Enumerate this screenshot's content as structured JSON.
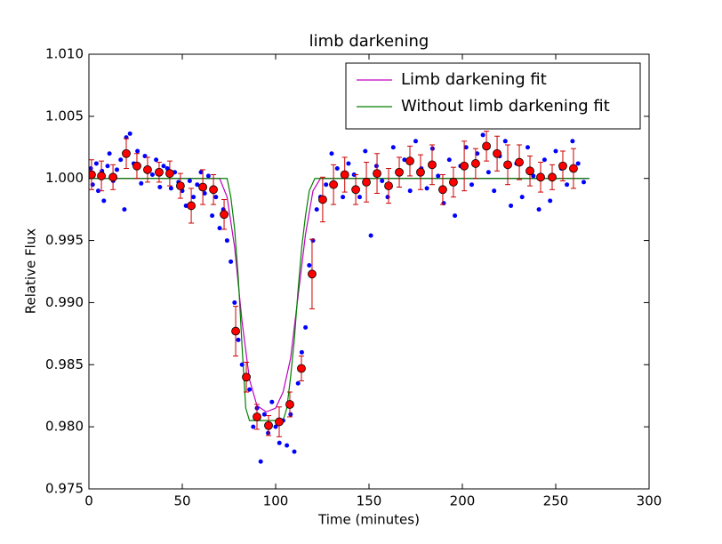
{
  "chart_data": {
    "type": "line",
    "title": "limb darkening",
    "x_label": "Time (minutes)",
    "y_label": "Relative Flux",
    "xlim": [
      0,
      300
    ],
    "ylim": [
      0.975,
      1.01
    ],
    "xticks": [
      0,
      50,
      100,
      150,
      200,
      250,
      300
    ],
    "yticks": [
      0.975,
      {
        "value": 0.98,
        "label": "0.980"
      },
      0.985,
      {
        "value": 0.99,
        "label": "0.990"
      },
      0.995,
      {
        "value": 1.0,
        "label": "1.000"
      },
      1.005,
      {
        "value": 1.01,
        "label": "1.010"
      }
    ],
    "legend": "upper right",
    "series": [
      {
        "type": "scatter",
        "color": "#0000ff",
        "x": [
          1,
          2,
          4,
          5,
          7,
          8,
          10,
          11,
          13,
          15,
          17,
          19,
          20,
          22,
          24,
          26,
          28,
          30,
          32,
          34,
          36,
          38,
          40,
          42,
          44,
          46,
          48,
          50,
          52,
          54,
          56,
          58,
          60,
          62,
          64,
          66,
          68,
          70,
          72,
          74,
          76,
          78,
          80,
          82,
          84,
          86,
          88,
          90,
          92,
          94,
          96,
          98,
          100,
          102,
          104,
          106,
          108,
          110,
          112,
          114,
          116,
          118,
          120,
          122,
          124,
          127,
          130,
          133,
          136,
          139,
          142,
          145,
          148,
          151,
          154,
          157,
          160,
          163,
          166,
          169,
          172,
          175,
          178,
          181,
          184,
          187,
          190,
          193,
          196,
          199,
          202,
          205,
          208,
          211,
          214,
          217,
          220,
          223,
          226,
          229,
          232,
          235,
          238,
          241,
          244,
          247,
          250,
          253,
          256,
          259,
          262,
          265
        ],
        "values": [
          1.0008,
          0.9995,
          1.0012,
          0.999,
          1.0006,
          0.9982,
          1.001,
          1.002,
          0.9998,
          1.0007,
          1.0015,
          0.9975,
          1.0033,
          1.0036,
          1.0012,
          1.0022,
          0.9996,
          1.0018,
          1.0008,
          1.0003,
          1.0015,
          0.9993,
          1.001,
          1.0008,
          0.9992,
          1.0005,
          0.9997,
          0.999,
          0.9978,
          0.9998,
          0.9985,
          0.9995,
          1.0005,
          0.9988,
          1.0002,
          0.997,
          0.9985,
          0.996,
          0.9975,
          0.995,
          0.9933,
          0.99,
          0.987,
          0.985,
          0.984,
          0.983,
          0.98,
          0.9815,
          0.9772,
          0.981,
          0.9795,
          0.982,
          0.98,
          0.9787,
          0.9805,
          0.9785,
          0.981,
          0.978,
          0.9835,
          0.986,
          0.988,
          0.993,
          0.995,
          0.9975,
          0.9985,
          0.9995,
          1.002,
          1.0008,
          0.9985,
          1.0012,
          1.0003,
          0.9985,
          1.0022,
          0.9954,
          1.001,
          0.9998,
          0.9985,
          1.0025,
          1.0005,
          1.0015,
          0.999,
          1.003,
          1.0008,
          0.9992,
          1.0024,
          1.0002,
          0.998,
          1.0015,
          0.997,
          1.001,
          1.0025,
          0.9995,
          1.002,
          1.0035,
          1.0005,
          0.999,
          1.0018,
          1.003,
          0.9978,
          1.0012,
          0.9985,
          1.0025,
          1.0002,
          0.9975,
          1.0015,
          0.9982,
          1.0022,
          1.0008,
          0.9995,
          1.003,
          1.0012,
          0.9997
        ]
      },
      {
        "type": "errorbar",
        "color": "#ff0000",
        "error_color": "#cc0000",
        "x": [
          1.4,
          6.7,
          12.9,
          20,
          25.7,
          31.4,
          37.6,
          43.3,
          49,
          54.8,
          61,
          66.7,
          72.4,
          78.6,
          84.3,
          90,
          96.2,
          101.9,
          107.6,
          113.8,
          119.5,
          125.2,
          131,
          137,
          142.9,
          148.6,
          154.3,
          160.5,
          166.2,
          171.9,
          177.6,
          183.8,
          189.5,
          195.2,
          201,
          207.1,
          212.9,
          218.6,
          224.3,
          230.5,
          236.2,
          241.9,
          248.1,
          253.8,
          259.5
        ],
        "values": [
          1.0003,
          1.0002,
          1.0001,
          1.002,
          1.001,
          1.0007,
          1.0005,
          1.0004,
          0.9994,
          0.9978,
          0.9993,
          0.9991,
          0.9971,
          0.9877,
          0.984,
          0.9808,
          0.9801,
          0.9804,
          0.9818,
          0.9847,
          0.9923,
          0.9983,
          0.9995,
          1.0003,
          0.9991,
          0.9997,
          1.0004,
          0.9994,
          1.0005,
          1.0014,
          1.0005,
          1.0011,
          0.9991,
          0.9997,
          1.001,
          1.0012,
          1.0026,
          1.002,
          1.0011,
          1.0013,
          1.0006,
          1.0001,
          1.0001,
          1.001,
          1.0008
        ],
        "errors": [
          0.0012,
          0.0012,
          0.001,
          0.0012,
          0.001,
          0.001,
          0.0008,
          0.001,
          0.001,
          0.0014,
          0.0014,
          0.0012,
          0.0012,
          0.002,
          0.0012,
          0.001,
          0.0008,
          0.0012,
          0.001,
          0.001,
          0.0028,
          0.0018,
          0.0016,
          0.0014,
          0.0012,
          0.0016,
          0.0016,
          0.0014,
          0.0012,
          0.0012,
          0.0014,
          0.0016,
          0.0012,
          0.0012,
          0.002,
          0.0012,
          0.0012,
          0.0014,
          0.0016,
          0.0014,
          0.0012,
          0.0012,
          0.001,
          0.0012,
          0.0016
        ]
      },
      {
        "type": "line",
        "name": "Limb darkening fit",
        "color": "#bf00bf",
        "x": [
          0,
          70,
          74,
          78,
          82,
          86,
          90,
          95,
          100,
          104,
          108,
          112,
          116,
          120,
          124,
          127,
          268
        ],
        "values": [
          1.0,
          1.0,
          0.9985,
          0.9945,
          0.9885,
          0.9838,
          0.9817,
          0.9812,
          0.9815,
          0.9828,
          0.9855,
          0.9905,
          0.9955,
          0.999,
          1.0,
          1.0,
          1.0
        ]
      },
      {
        "type": "line",
        "name": "Without limb darkening fit",
        "color": "#008000",
        "x": [
          0,
          74,
          76,
          78,
          80,
          82,
          84,
          86,
          104,
          106,
          108,
          110,
          112,
          114,
          116,
          118,
          121,
          268
        ],
        "values": [
          1.0,
          1.0,
          0.9985,
          0.996,
          0.992,
          0.9865,
          0.9815,
          0.9805,
          0.9805,
          0.9815,
          0.984,
          0.987,
          0.991,
          0.9945,
          0.997,
          0.999,
          1.0,
          1.0
        ]
      }
    ]
  }
}
